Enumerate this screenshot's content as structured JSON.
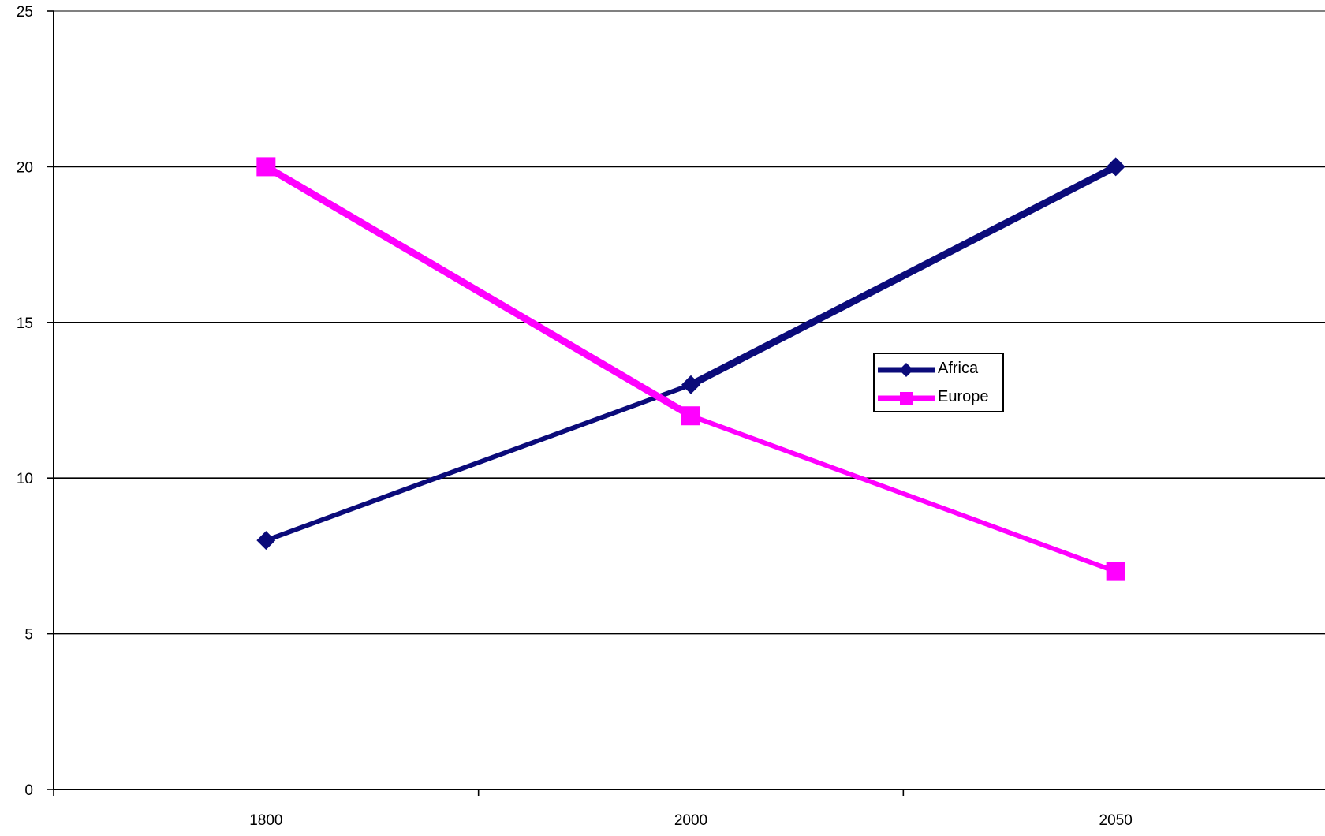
{
  "colors": {
    "africa": "#0b0b7a",
    "europe": "#ff00ff",
    "axis": "#000000",
    "grid": "#000000",
    "background": "#ffffff"
  },
  "chart_data": {
    "type": "line",
    "title": "",
    "xlabel": "",
    "ylabel": "",
    "categories": [
      "1800",
      "2000",
      "2050"
    ],
    "ylim": [
      0,
      25
    ],
    "yticks": [
      0,
      5,
      10,
      15,
      20,
      25
    ],
    "grid": true,
    "legend_position": "right-center",
    "series": [
      {
        "name": "Africa",
        "values": [
          8,
          13,
          20
        ],
        "color": "#0b0b7a",
        "marker": "diamond"
      },
      {
        "name": "Europe",
        "values": [
          20,
          12,
          7
        ],
        "color": "#ff00ff",
        "marker": "square"
      }
    ]
  }
}
